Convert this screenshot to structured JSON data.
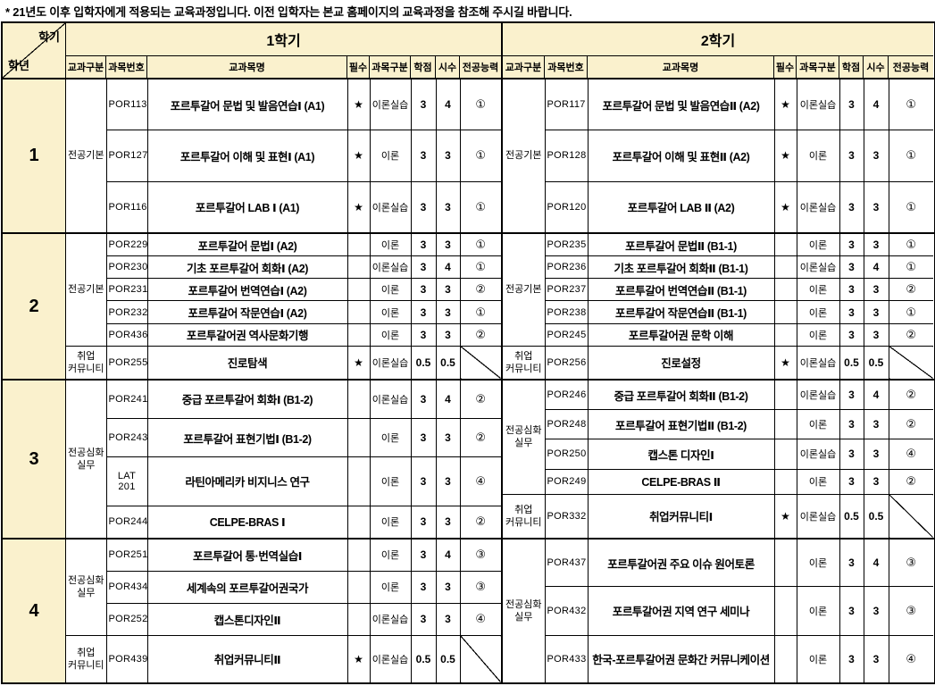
{
  "page": {
    "note": "* 21년도 이후 입학자에게 적용되는 교육과정입니다. 이전 입학자는 본교 홈페이지의 교육과정을 참조해 주시길 바랍니다."
  },
  "table": {
    "corner": {
      "top_label": "학기",
      "bottom_label": "학년"
    },
    "semester_headers": [
      "1학기",
      "2학기"
    ],
    "columns": [
      "교과구분",
      "과목번호",
      "교과목명",
      "필수",
      "과목구분",
      "학점",
      "시수",
      "전공능력"
    ],
    "colors": {
      "header_bg": "#FAF1CD",
      "border": "#000000",
      "required_star": "#000000"
    },
    "years": [
      {
        "label": "1",
        "first": {
          "groups": [
            {
              "category": "전공기본",
              "rows": [
                {
                  "id": "POR113",
                  "name": "포르투갈어 문법 및 발음연습Ⅰ (A1)",
                  "required": "★",
                  "type": "이론실습",
                  "credits": "3",
                  "hours": "4",
                  "ability": "①"
                },
                {
                  "id": "POR127",
                  "name": "포르투갈어 이해 및 표현Ⅰ (A1)",
                  "required": "★",
                  "type": "이론",
                  "credits": "3",
                  "hours": "3",
                  "ability": "①"
                },
                {
                  "id": "POR116",
                  "name": "포르투갈어 LAB Ⅰ (A1)",
                  "required": "★",
                  "type": "이론실습",
                  "credits": "3",
                  "hours": "3",
                  "ability": "①"
                }
              ]
            }
          ]
        },
        "second": {
          "groups": [
            {
              "category": "전공기본",
              "rows": [
                {
                  "id": "POR117",
                  "name": "포르투갈어 문법 및 발음연습Ⅱ (A2)",
                  "required": "★",
                  "type": "이론실습",
                  "credits": "3",
                  "hours": "4",
                  "ability": "①"
                },
                {
                  "id": "POR128",
                  "name": "포르투갈어 이해 및 표현Ⅱ (A2)",
                  "required": "★",
                  "type": "이론",
                  "credits": "3",
                  "hours": "3",
                  "ability": "①"
                },
                {
                  "id": "POR120",
                  "name": "포르투갈어 LAB Ⅱ (A2)",
                  "required": "★",
                  "type": "이론실습",
                  "credits": "3",
                  "hours": "3",
                  "ability": "①"
                }
              ]
            }
          ]
        }
      },
      {
        "label": "2",
        "first": {
          "groups": [
            {
              "category": "전공기본",
              "rows": [
                {
                  "id": "POR229",
                  "name": "포르투갈어 문법Ⅰ (A2)",
                  "required": "",
                  "type": "이론",
                  "credits": "3",
                  "hours": "3",
                  "ability": "①"
                },
                {
                  "id": "POR230",
                  "name": "기초 포르투갈어 회화Ⅰ (A2)",
                  "required": "",
                  "type": "이론실습",
                  "credits": "3",
                  "hours": "4",
                  "ability": "①"
                },
                {
                  "id": "POR231",
                  "name": "포르투갈어 번역연습Ⅰ (A2)",
                  "required": "",
                  "type": "이론",
                  "credits": "3",
                  "hours": "3",
                  "ability": "②"
                },
                {
                  "id": "POR232",
                  "name": "포르투갈어 작문연습Ⅰ (A2)",
                  "required": "",
                  "type": "이론",
                  "credits": "3",
                  "hours": "3",
                  "ability": "①"
                },
                {
                  "id": "POR436",
                  "name": "포르투갈어권 역사문화기행",
                  "required": "",
                  "type": "이론",
                  "credits": "3",
                  "hours": "3",
                  "ability": "②"
                }
              ]
            },
            {
              "category": "취업\n커뮤니티",
              "rows": [
                {
                  "id": "POR255",
                  "name": "진로탐색",
                  "required": "★",
                  "type": "이론실습",
                  "credits": "0.5",
                  "hours": "0.5",
                  "ability": null
                }
              ]
            }
          ]
        },
        "second": {
          "groups": [
            {
              "category": "전공기본",
              "rows": [
                {
                  "id": "POR235",
                  "name": "포르투갈어 문법Ⅱ (B1-1)",
                  "required": "",
                  "type": "이론",
                  "credits": "3",
                  "hours": "3",
                  "ability": "①"
                },
                {
                  "id": "POR236",
                  "name": "기초 포르투갈어 회화Ⅱ (B1-1)",
                  "required": "",
                  "type": "이론실습",
                  "credits": "3",
                  "hours": "4",
                  "ability": "①"
                },
                {
                  "id": "POR237",
                  "name": "포르투갈어 번역연습Ⅱ (B1-1)",
                  "required": "",
                  "type": "이론",
                  "credits": "3",
                  "hours": "3",
                  "ability": "②"
                },
                {
                  "id": "POR238",
                  "name": "포르투갈어 작문연습Ⅱ (B1-1)",
                  "required": "",
                  "type": "이론",
                  "credits": "3",
                  "hours": "3",
                  "ability": "①"
                },
                {
                  "id": "POR245",
                  "name": "포르투갈어권 문학 이해",
                  "required": "",
                  "type": "이론",
                  "credits": "3",
                  "hours": "3",
                  "ability": "②"
                }
              ]
            },
            {
              "category": "취업\n커뮤니티",
              "rows": [
                {
                  "id": "POR256",
                  "name": "진로설정",
                  "required": "★",
                  "type": "이론실습",
                  "credits": "0.5",
                  "hours": "0.5",
                  "ability": null
                }
              ]
            }
          ]
        }
      },
      {
        "label": "3",
        "first": {
          "groups": [
            {
              "category": "전공심화\n실무",
              "rows": [
                {
                  "id": "POR241",
                  "name": "중급 포르투갈어 회화Ⅰ (B1-2)",
                  "required": "",
                  "type": "이론실습",
                  "credits": "3",
                  "hours": "4",
                  "ability": "②"
                },
                {
                  "id": "POR243",
                  "name": "포르투갈어 표현기법Ⅰ (B1-2)",
                  "required": "",
                  "type": "이론",
                  "credits": "3",
                  "hours": "3",
                  "ability": "②"
                },
                {
                  "id": "LAT 201",
                  "name": "라틴아메리카 비지니스 연구",
                  "required": "",
                  "type": "이론",
                  "credits": "3",
                  "hours": "3",
                  "ability": "④"
                },
                {
                  "id": "POR244",
                  "name": "CELPE-BRAS Ⅰ",
                  "required": "",
                  "type": "이론",
                  "credits": "3",
                  "hours": "3",
                  "ability": "②"
                }
              ]
            }
          ]
        },
        "second": {
          "groups": [
            {
              "category": "전공심화\n실무",
              "rows": [
                {
                  "id": "POR246",
                  "name": "중급 포르투갈어 회화Ⅱ (B1-2)",
                  "required": "",
                  "type": "이론실습",
                  "credits": "3",
                  "hours": "4",
                  "ability": "②"
                },
                {
                  "id": "POR248",
                  "name": "포르투갈어 표현기법Ⅱ (B1-2)",
                  "required": "",
                  "type": "이론",
                  "credits": "3",
                  "hours": "3",
                  "ability": "②"
                },
                {
                  "id": "POR250",
                  "name": "캡스톤 디자인Ⅰ",
                  "required": "",
                  "type": "이론실습",
                  "credits": "3",
                  "hours": "3",
                  "ability": "④"
                },
                {
                  "id": "POR249",
                  "name": "CELPE-BRAS Ⅱ",
                  "required": "",
                  "type": "이론",
                  "credits": "3",
                  "hours": "3",
                  "ability": "②"
                }
              ]
            },
            {
              "category": "취업\n커뮤니티",
              "rows": [
                {
                  "id": "POR332",
                  "name": "취업커뮤니티Ⅰ",
                  "required": "★",
                  "type": "이론실습",
                  "credits": "0.5",
                  "hours": "0.5",
                  "ability": null
                }
              ]
            }
          ]
        }
      },
      {
        "label": "4",
        "first": {
          "groups": [
            {
              "category": "전공심화\n실무",
              "rows": [
                {
                  "id": "POR251",
                  "name": "포르투갈어 통·번역실습Ⅰ",
                  "required": "",
                  "type": "이론",
                  "credits": "3",
                  "hours": "4",
                  "ability": "③"
                },
                {
                  "id": "POR434",
                  "name": "세계속의 포르투갈어권국가",
                  "required": "",
                  "type": "이론",
                  "credits": "3",
                  "hours": "3",
                  "ability": "③"
                },
                {
                  "id": "POR252",
                  "name": "캡스톤디자인Ⅱ",
                  "required": "",
                  "type": "이론실습",
                  "credits": "3",
                  "hours": "3",
                  "ability": "④"
                }
              ]
            },
            {
              "category": "취업\n커뮤니티",
              "rows": [
                {
                  "id": "POR439",
                  "name": "취업커뮤니티Ⅱ",
                  "required": "★",
                  "type": "이론실습",
                  "credits": "0.5",
                  "hours": "0.5",
                  "ability": null
                }
              ]
            }
          ]
        },
        "second": {
          "groups": [
            {
              "category": "전공심화\n실무",
              "rows": [
                {
                  "id": "POR437",
                  "name": "포르투갈어권 주요 이슈 원어토론",
                  "required": "",
                  "type": "이론",
                  "credits": "3",
                  "hours": "4",
                  "ability": "③"
                },
                {
                  "id": "POR432",
                  "name": "포르투갈어권 지역 연구 세미나",
                  "required": "",
                  "type": "이론",
                  "credits": "3",
                  "hours": "3",
                  "ability": "③"
                },
                {
                  "id": "POR433",
                  "name": "한국-포르투갈어권 문화간 커뮤니케이션",
                  "required": "",
                  "type": "이론",
                  "credits": "3",
                  "hours": "3",
                  "ability": "④"
                }
              ]
            }
          ]
        }
      }
    ]
  }
}
